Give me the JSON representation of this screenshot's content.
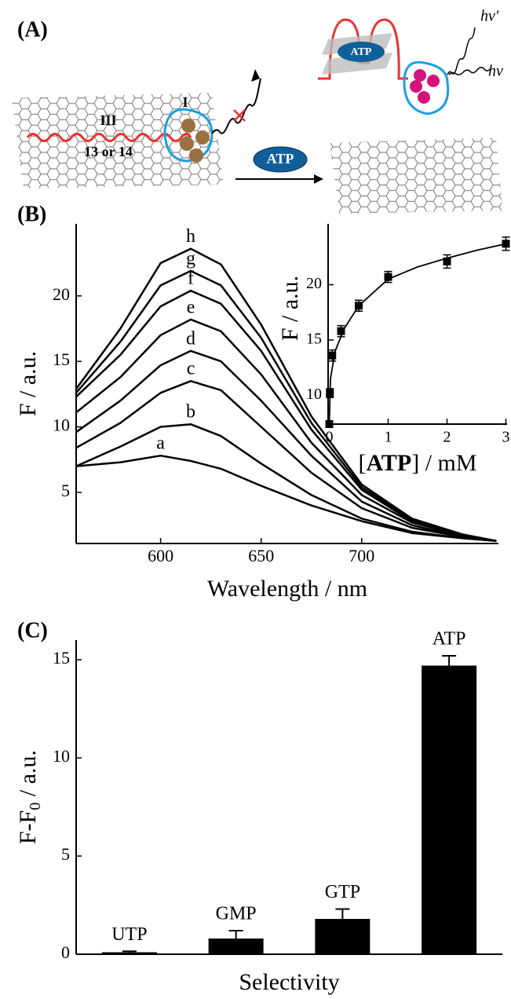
{
  "diagram": {
    "label": "(A)",
    "strand_label": "III",
    "strand_number": "13 or 14",
    "cluster_label": "I",
    "target": "ATP",
    "complex_target": "ATP",
    "emission_out": "hv′",
    "excitation": "hv"
  },
  "chart_data": [
    {
      "type": "line",
      "panel_label": "(B)",
      "xlabel": "Wavelength / nm",
      "ylabel": "F / a.u.",
      "x": [
        558,
        580,
        600,
        615,
        630,
        650,
        675,
        700,
        725,
        750,
        767
      ],
      "xlim": [
        558,
        768
      ],
      "ylim": [
        1.1,
        25.5
      ],
      "xticks": [
        600,
        650,
        700
      ],
      "yticks": [
        5,
        10,
        15,
        20
      ],
      "series": [
        {
          "name": "a",
          "color": "#000000",
          "values": [
            7.0,
            7.3,
            7.8,
            7.4,
            6.8,
            5.5,
            4.0,
            2.8,
            1.9,
            1.5,
            1.3
          ]
        },
        {
          "name": "b",
          "color": "#000000",
          "values": [
            7.0,
            8.5,
            10.0,
            10.2,
            9.3,
            7.2,
            4.8,
            3.0,
            2.0,
            1.5,
            1.3
          ]
        },
        {
          "name": "c",
          "color": "#000000",
          "values": [
            8.4,
            10.3,
            12.6,
            13.5,
            12.8,
            10.0,
            6.5,
            3.8,
            2.3,
            1.6,
            1.3
          ]
        },
        {
          "name": "d",
          "color": "#000000",
          "values": [
            9.6,
            12.0,
            14.7,
            15.8,
            15.0,
            12.0,
            7.8,
            4.3,
            2.5,
            1.6,
            1.3
          ]
        },
        {
          "name": "e",
          "color": "#000000",
          "values": [
            11.1,
            13.8,
            17.0,
            18.2,
            17.3,
            14.0,
            8.8,
            4.8,
            2.7,
            1.7,
            1.3
          ]
        },
        {
          "name": "f",
          "color": "#000000",
          "values": [
            12.3,
            15.5,
            19.2,
            20.4,
            19.4,
            15.8,
            9.8,
            5.2,
            2.8,
            1.7,
            1.3
          ]
        },
        {
          "name": "g",
          "color": "#000000",
          "values": [
            12.6,
            16.5,
            20.8,
            21.9,
            20.8,
            16.8,
            10.3,
            5.4,
            2.9,
            1.7,
            1.3
          ]
        },
        {
          "name": "h",
          "color": "#000000",
          "values": [
            12.9,
            17.5,
            22.5,
            23.6,
            22.4,
            17.8,
            10.8,
            5.6,
            3.0,
            1.8,
            1.3
          ]
        }
      ]
    },
    {
      "type": "scatter",
      "xlabel": [
        "[",
        "ATP",
        "] / mM"
      ],
      "ylabel": "F / a.u.",
      "x": [
        0,
        0.01,
        0.05,
        0.2,
        0.5,
        1,
        2,
        3
      ],
      "values": [
        7.4,
        10.2,
        13.6,
        15.8,
        18.1,
        20.7,
        22.1,
        23.7
      ],
      "errors": [
        0.3,
        0.4,
        0.5,
        0.5,
        0.5,
        0.5,
        0.6,
        0.6
      ],
      "fit": {
        "x": [
          0,
          0.02,
          0.1,
          0.25,
          0.5,
          1,
          1.5,
          2,
          2.5,
          3
        ],
        "values": [
          7.4,
          11.5,
          14.0,
          16.0,
          18.1,
          20.5,
          21.6,
          22.4,
          23.1,
          23.7
        ]
      },
      "color": "#000000",
      "xlim": [
        -0.02,
        3.02
      ],
      "ylim": [
        7.4,
        25.5
      ],
      "xticks": [
        0,
        1,
        2,
        3
      ],
      "yticks": [
        10,
        15,
        20
      ]
    },
    {
      "type": "bar",
      "panel_label": "(C)",
      "xlabel": "Selectivity",
      "ylabel": {
        "main": "F-F",
        "sub": "0",
        "rest": " / a.u."
      },
      "categories": [
        "UTP",
        "GMP",
        "GTP",
        "ATP"
      ],
      "values": [
        0.1,
        0.8,
        1.8,
        14.7
      ],
      "errors": [
        0.05,
        0.4,
        0.5,
        0.5
      ],
      "color": "#000000",
      "ylim": [
        0,
        16
      ],
      "yticks": [
        0,
        5,
        10,
        15
      ]
    }
  ]
}
